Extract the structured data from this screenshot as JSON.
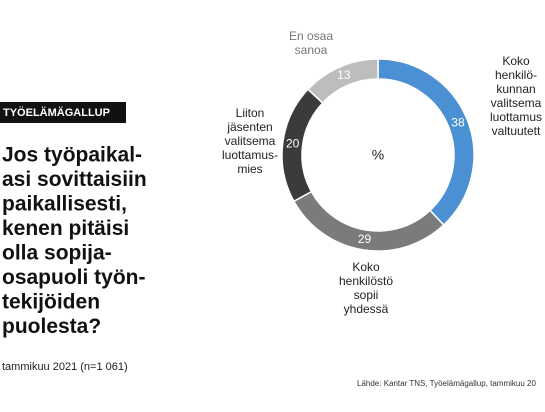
{
  "chart_data": {
    "type": "donut",
    "label": "TYÖELÄMÄGALLUP",
    "title": [
      "Jos työpaikal-",
      "asi sovittaisiin",
      "paikallisesti,",
      "kenen pitäisi",
      "olla sopija-",
      "osapuoli työn-",
      "tekijöiden",
      "puolesta?"
    ],
    "subtitle": "tammikuu 2021 (n=1 061)",
    "source": "Lähde: Kantar TNS, Työelämägallup, tammikuu 20",
    "center_label": "%",
    "categories": [
      [
        "Koko",
        "henkilö-",
        "kunnan",
        "valitsema",
        "luottamus",
        "valtuutett"
      ],
      [
        "Koko",
        "henkilöstö",
        "sopii",
        "yhdessä"
      ],
      [
        "Liiton",
        "jäsenten",
        "valitsema",
        "luottamus-",
        "mies"
      ],
      [
        "En osaa",
        "sanoa"
      ]
    ],
    "values": [
      38,
      29,
      20,
      13
    ],
    "colors": [
      "#4a90d2",
      "#7b7b7b",
      "#3b3b3b",
      "#bdbdbd"
    ]
  }
}
